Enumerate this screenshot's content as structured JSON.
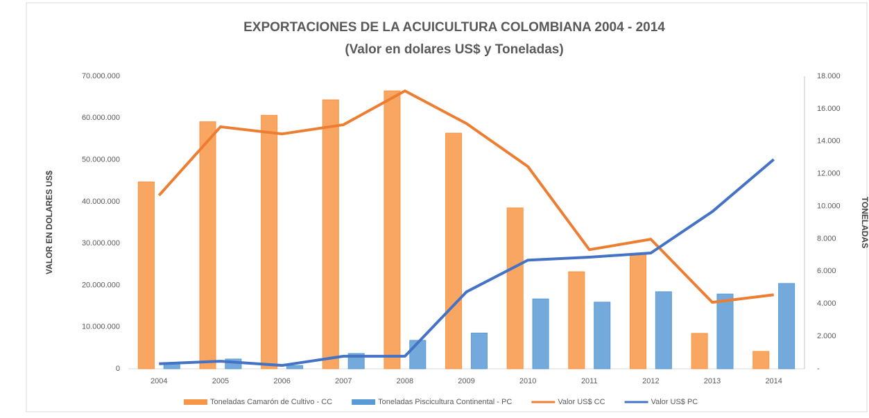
{
  "chart_data": {
    "type": "combo",
    "title": "EXPORTACIONES DE LA ACUICULTURA COLOMBIANA 2004 - 2014",
    "subtitle": "(Valor en dolares US$ y Toneladas)",
    "y_label": "VALOR EN DOLARES US$",
    "y2_label": "TONELADAS",
    "categories": [
      "2004",
      "2005",
      "2006",
      "2007",
      "2008",
      "2009",
      "2010",
      "2011",
      "2012",
      "2013",
      "2014"
    ],
    "series": [
      {
        "name": "Toneladas Camarón de Cultivo - CC",
        "type": "bar",
        "axis": "y2",
        "color": "#f79646",
        "values": [
          11500,
          15200,
          15600,
          16550,
          17100,
          14500,
          9900,
          5970,
          7080,
          2180,
          1070
        ]
      },
      {
        "name": "Toneladas Piscicultura Continental - PC",
        "type": "bar",
        "axis": "y2",
        "color": "#5b9bd5",
        "values": [
          300,
          600,
          200,
          940,
          1750,
          2200,
          4300,
          4100,
          4740,
          4600,
          5250
        ]
      },
      {
        "name": "Valor US$ CC",
        "type": "line",
        "color": "#ed7d31",
        "values": [
          41500000,
          57900000,
          56200000,
          58400000,
          66500000,
          58700000,
          48400000,
          28500000,
          31000000,
          15900000,
          17700000
        ]
      },
      {
        "name": "Valor US$ PC",
        "type": "line",
        "color": "#4472c4",
        "values": [
          1200000,
          1800000,
          800000,
          3000000,
          3000000,
          18400000,
          26000000,
          26700000,
          27700000,
          37600000,
          50100000
        ]
      }
    ],
    "ylim": [
      0,
      70000000
    ],
    "yticks": [
      {
        "value": 0,
        "label": "0"
      },
      {
        "value": 10000000,
        "label": "10.000.000"
      },
      {
        "value": 20000000,
        "label": "20.000.000"
      },
      {
        "value": 30000000,
        "label": "30.000.000"
      },
      {
        "value": 40000000,
        "label": "40.000.000"
      },
      {
        "value": 50000000,
        "label": "50.000.000"
      },
      {
        "value": 60000000,
        "label": "60.000.000"
      },
      {
        "value": 70000000,
        "label": "70.000.000"
      }
    ],
    "y2lim": [
      0,
      18000
    ],
    "y2ticks": [
      {
        "value": 0,
        "label": "-"
      },
      {
        "value": 2000,
        "label": "2.000"
      },
      {
        "value": 4000,
        "label": "4.000"
      },
      {
        "value": 6000,
        "label": "6.000"
      },
      {
        "value": 8000,
        "label": "8.000"
      },
      {
        "value": 10000,
        "label": "10.000"
      },
      {
        "value": 12000,
        "label": "12.000"
      },
      {
        "value": 14000,
        "label": "14.000"
      },
      {
        "value": 16000,
        "label": "16.000"
      },
      {
        "value": 18000,
        "label": "18.000"
      }
    ],
    "legend": "bottom"
  }
}
